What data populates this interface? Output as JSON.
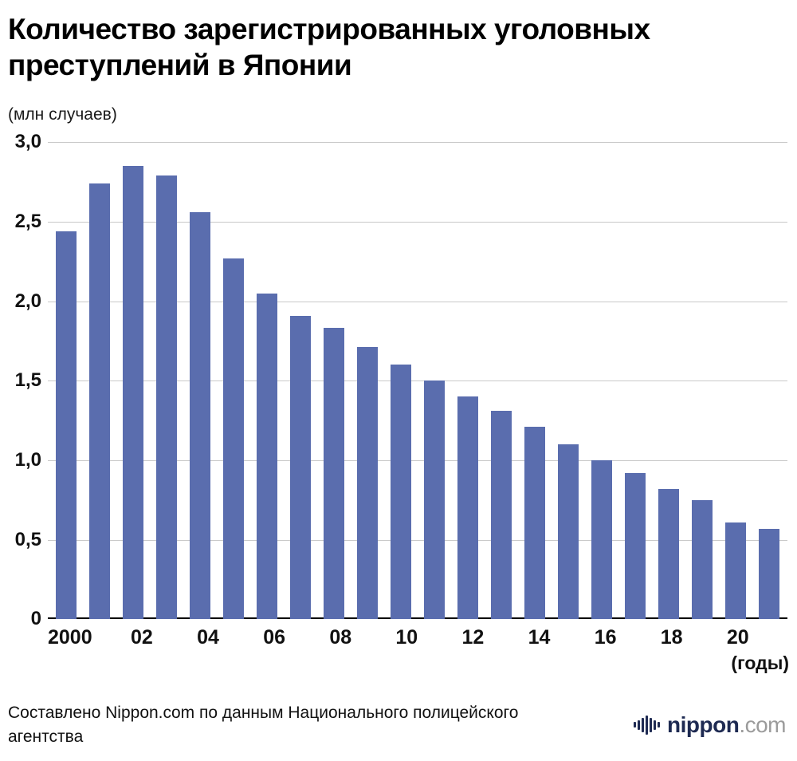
{
  "header": {
    "title": "Количество зарегистрированных уголовных преступлений в Японии"
  },
  "chart_data": {
    "type": "bar",
    "title": "Количество зарегистрированных уголовных преступлений в Японии",
    "unit_label": "(млн случаев)",
    "x_axis_note": "(годы)",
    "xlabel": "годы",
    "ylabel": "млн случаев",
    "ylim": [
      0,
      3.0
    ],
    "grid": true,
    "bar_color": "#5a6dae",
    "grid_color": "#c9c9c9",
    "years": [
      2000,
      2001,
      2002,
      2003,
      2004,
      2005,
      2006,
      2007,
      2008,
      2009,
      2010,
      2011,
      2012,
      2013,
      2014,
      2015,
      2016,
      2017,
      2018,
      2019,
      2020,
      2021
    ],
    "values": [
      2.44,
      2.74,
      2.85,
      2.79,
      2.56,
      2.27,
      2.05,
      1.91,
      1.83,
      1.71,
      1.6,
      1.5,
      1.4,
      1.31,
      1.21,
      1.1,
      1.0,
      0.92,
      0.82,
      0.75,
      0.61,
      0.57
    ],
    "y_ticks": [
      {
        "value": 3.0,
        "label": "3,0"
      },
      {
        "value": 2.5,
        "label": "2,5"
      },
      {
        "value": 2.0,
        "label": "2,0"
      },
      {
        "value": 1.5,
        "label": "1,5"
      },
      {
        "value": 1.0,
        "label": "1,0"
      },
      {
        "value": 0.5,
        "label": "0,5"
      },
      {
        "value": 0,
        "label": "0"
      }
    ],
    "x_tick_labels": [
      "2000",
      "",
      "02",
      "",
      "04",
      "",
      "06",
      "",
      "08",
      "",
      "10",
      "",
      "12",
      "",
      "14",
      "",
      "16",
      "",
      "18",
      "",
      "20",
      ""
    ]
  },
  "footer": {
    "source_text": "Составлено Nippon.com по данным Национального полицейского агентства",
    "logo": {
      "name": "nippon",
      "domain": ".com",
      "brand_color": "#1e2a52",
      "domain_color": "#9b9b9b"
    }
  }
}
